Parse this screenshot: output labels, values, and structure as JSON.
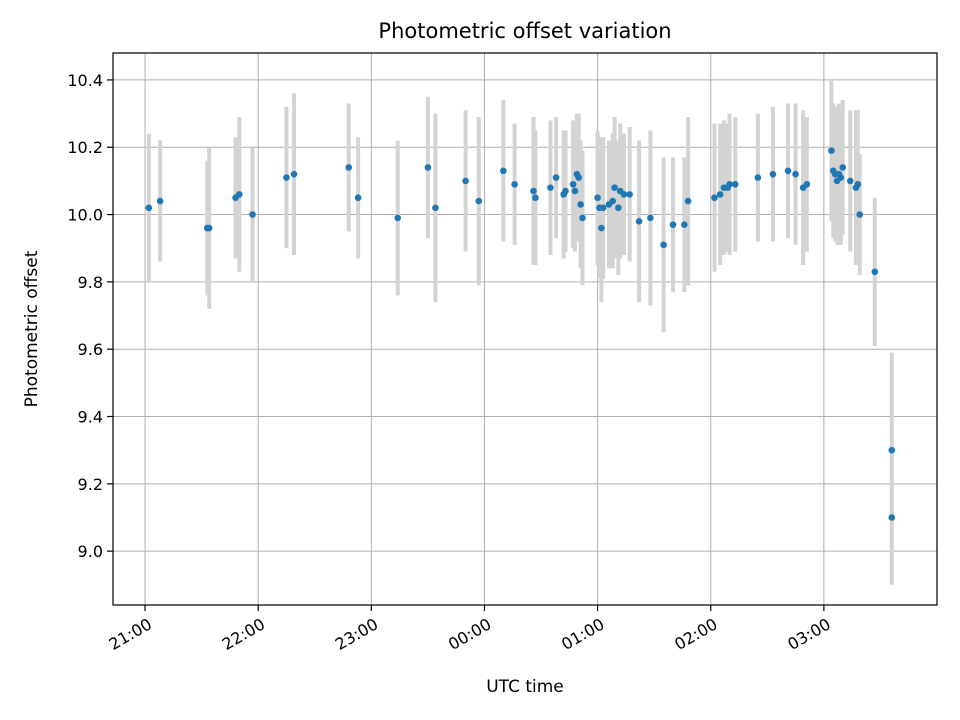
{
  "chart_data": {
    "type": "scatter",
    "title": "Photometric offset variation",
    "xlabel": "UTC time",
    "ylabel": "Photometric offset",
    "grid": true,
    "x_is_time": true,
    "x_day_origin": "20:00",
    "xlim": [
      "20:43",
      "04:00"
    ],
    "ylim": [
      8.84,
      10.48
    ],
    "xticks": [
      {
        "label": "21:00",
        "h": 21
      },
      {
        "label": "22:00",
        "h": 22
      },
      {
        "label": "23:00",
        "h": 23
      },
      {
        "label": "00:00",
        "h": 24
      },
      {
        "label": "01:00",
        "h": 25
      },
      {
        "label": "02:00",
        "h": 26
      },
      {
        "label": "03:00",
        "h": 27
      }
    ],
    "yticks": [
      "9.0",
      "9.2",
      "9.4",
      "9.6",
      "9.8",
      "10.0",
      "10.2",
      "10.4"
    ],
    "colors": {
      "points": "#1f77b4",
      "errorbars": "#d3d3d3",
      "grid": "#b0b0b0"
    },
    "series": [
      {
        "x": [
          "21:02",
          "21:08",
          "21:33",
          "21:34",
          "21:48",
          "21:50",
          "21:57",
          "22:15",
          "22:19",
          "22:48",
          "22:53",
          "23:14",
          "23:30",
          "23:34",
          "23:50",
          "23:57",
          "00:10",
          "00:16",
          "00:26",
          "00:27",
          "00:35",
          "00:38",
          "00:42",
          "00:43",
          "00:47",
          "00:48",
          "00:49",
          "00:50",
          "00:51",
          "00:52",
          "01:00",
          "01:01",
          "01:02",
          "01:03",
          "01:06",
          "01:08",
          "01:09",
          "01:11",
          "01:12",
          "01:14",
          "01:17",
          "01:22",
          "01:28",
          "01:35",
          "01:40",
          "01:46",
          "01:48",
          "02:02",
          "02:05",
          "02:07",
          "02:09",
          "02:10",
          "02:13",
          "02:25",
          "02:33",
          "02:41",
          "02:45",
          "02:49",
          "02:51",
          "03:04",
          "03:05",
          "03:06",
          "03:07",
          "03:08",
          "03:09",
          "03:10",
          "03:14",
          "03:17",
          "03:18",
          "03:19",
          "03:27",
          "03:36",
          "03:36"
        ],
        "y": [
          10.02,
          10.04,
          9.96,
          9.96,
          10.05,
          10.06,
          10.0,
          10.11,
          10.12,
          10.14,
          10.05,
          9.99,
          10.14,
          10.02,
          10.1,
          10.04,
          10.13,
          10.09,
          10.07,
          10.05,
          10.08,
          10.11,
          10.06,
          10.07,
          10.09,
          10.07,
          10.12,
          10.11,
          10.03,
          9.99,
          10.05,
          10.02,
          9.96,
          10.02,
          10.03,
          10.04,
          10.08,
          10.02,
          10.07,
          10.06,
          10.06,
          9.98,
          9.99,
          9.91,
          9.97,
          9.97,
          10.04,
          10.05,
          10.06,
          10.08,
          10.08,
          10.09,
          10.09,
          10.11,
          10.12,
          10.13,
          10.12,
          10.08,
          10.09,
          10.19,
          10.13,
          10.12,
          10.1,
          10.12,
          10.11,
          10.14,
          10.1,
          10.08,
          10.09,
          10.0,
          9.83,
          9.3,
          9.1
        ],
        "err": [
          0.22,
          0.18,
          0.2,
          0.24,
          0.18,
          0.23,
          0.2,
          0.21,
          0.24,
          0.19,
          0.18,
          0.23,
          0.21,
          0.28,
          0.21,
          0.25,
          0.21,
          0.18,
          0.22,
          0.2,
          0.2,
          0.18,
          0.19,
          0.18,
          0.19,
          0.18,
          0.18,
          0.19,
          0.19,
          0.2,
          0.2,
          0.21,
          0.22,
          0.21,
          0.19,
          0.2,
          0.21,
          0.2,
          0.2,
          0.18,
          0.2,
          0.24,
          0.26,
          0.26,
          0.2,
          0.2,
          0.25,
          0.22,
          0.21,
          0.2,
          0.19,
          0.21,
          0.2,
          0.19,
          0.2,
          0.2,
          0.21,
          0.23,
          0.2,
          0.21,
          0.2,
          0.2,
          0.19,
          0.21,
          0.2,
          0.2,
          0.21,
          0.23,
          0.22,
          0.18,
          0.22,
          0.29,
          0.2
        ]
      }
    ]
  }
}
